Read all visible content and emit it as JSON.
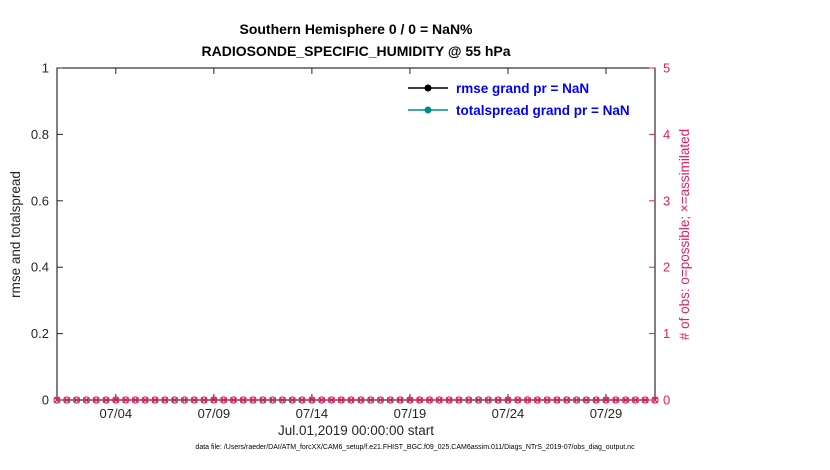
{
  "chart_data": {
    "type": "line",
    "title": "Southern Hemisphere 0 / 0 = NaN%",
    "subtitle": "RADIOSONDE_SPECIFIC_HUMIDITY @ 55 hPa",
    "xlabel": "Jul.01,2019 00:00:00 start",
    "x_axis": {
      "start_day": 1,
      "end_day": 31.5,
      "tick_days": [
        4,
        9,
        14,
        19,
        24,
        29
      ],
      "tick_labels": [
        "07/04",
        "07/09",
        "07/14",
        "07/19",
        "07/24",
        "07/29"
      ]
    },
    "left_axis": {
      "label": "rmse and totalspread",
      "lim": [
        0,
        1
      ],
      "ticks": [
        0,
        0.2,
        0.4,
        0.6,
        0.8,
        1
      ],
      "tick_labels": [
        "0",
        "0.2",
        "0.4",
        "0.6",
        "0.8",
        "1"
      ],
      "color": "#262626"
    },
    "right_axis": {
      "label": "# of obs: o=possible; ×=assimilated",
      "lim": [
        0,
        5
      ],
      "ticks": [
        0,
        1,
        2,
        3,
        4,
        5
      ],
      "tick_labels": [
        "0",
        "1",
        "2",
        "3",
        "4",
        "5"
      ],
      "color": "#e02060"
    },
    "series": [
      {
        "name": "rmse",
        "legend_label": "rmse grand pr = NaN",
        "axis": "left",
        "color": "#000000",
        "marker": "filled-circle",
        "values": "NaN"
      },
      {
        "name": "totalspread",
        "legend_label": "totalspread grand pr = NaN",
        "axis": "left",
        "color": "#008b8b",
        "marker": "filled-circle",
        "values": "NaN"
      },
      {
        "name": "possible-obs",
        "axis": "right",
        "color": "#e02060",
        "marker": "o",
        "x_days": {
          "start": 1,
          "end": 31.5,
          "step": 0.5
        },
        "constant_value": 0
      },
      {
        "name": "assimilated-obs",
        "axis": "right",
        "color": "#e02060",
        "marker": "x",
        "x_days": {
          "start": 1,
          "end": 31.5,
          "step": 0.5
        },
        "constant_value": 0
      }
    ]
  },
  "legend": {
    "text_color": "#0000ff"
  },
  "figure": {
    "caption": "data file: /Users/raeder/DAI/ATM_forcXX/CAM6_setup/f.e21.FHIST_BGC.f09_025.CAM6assim.011/Diags_NTrS_2019-07/obs_diag_output.nc"
  }
}
